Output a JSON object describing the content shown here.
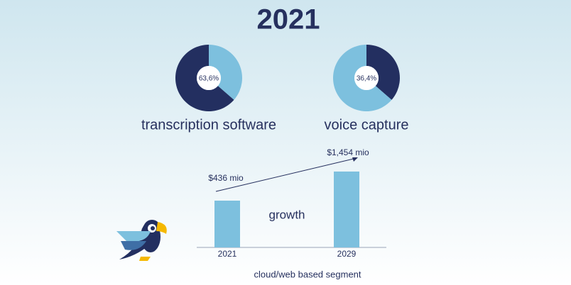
{
  "title": "2021",
  "chart_data": [
    {
      "type": "pie",
      "title": "transcription software",
      "values": [
        36.4,
        63.6
      ],
      "value_labels": [
        null,
        "63,6%"
      ],
      "colors": [
        "#7dc0de",
        "#232f60"
      ]
    },
    {
      "type": "pie",
      "title": "voice capture",
      "values": [
        36.4,
        63.6
      ],
      "value_labels": [
        "36,4%",
        null
      ],
      "colors": [
        "#232f60",
        "#7dc0de"
      ]
    },
    {
      "type": "bar",
      "categories": [
        "2021",
        "2029"
      ],
      "values": [
        436,
        1454
      ],
      "value_labels": [
        "$436 mio",
        "$1,454 mio"
      ],
      "color": "#7dc0de",
      "ylim": [
        -1200,
        1800
      ],
      "annotation": "growth",
      "xlabel": "cloud/web based segment"
    }
  ]
}
